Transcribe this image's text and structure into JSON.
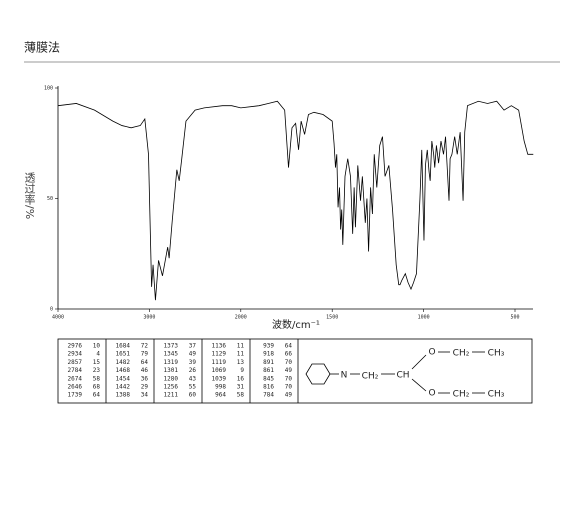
{
  "header": {
    "title": "薄膜法"
  },
  "chart_data": {
    "type": "line",
    "x_label": "波数/cm⁻¹",
    "y_label": "透过率/%",
    "color": "#000000",
    "xlim": [
      4000,
      400
    ],
    "ylim": [
      0,
      100
    ],
    "xticks": [
      4000,
      3000,
      2000,
      1500,
      1000,
      500
    ],
    "yticks": [
      0,
      50,
      100
    ],
    "x": [
      4000,
      3800,
      3600,
      3400,
      3300,
      3200,
      3100,
      3050,
      3010,
      2976,
      2960,
      2934,
      2900,
      2857,
      2800,
      2784,
      2750,
      2700,
      2674,
      2646,
      2600,
      2500,
      2400,
      2200,
      2100,
      2000,
      1900,
      1850,
      1800,
      1760,
      1739,
      1720,
      1700,
      1684,
      1670,
      1651,
      1630,
      1600,
      1550,
      1500,
      1490,
      1482,
      1475,
      1468,
      1460,
      1454,
      1448,
      1442,
      1430,
      1415,
      1400,
      1388,
      1380,
      1373,
      1360,
      1345,
      1335,
      1319,
      1310,
      1301,
      1290,
      1280,
      1270,
      1256,
      1240,
      1225,
      1211,
      1190,
      1170,
      1150,
      1136,
      1129,
      1119,
      1100,
      1085,
      1069,
      1055,
      1039,
      1020,
      1010,
      998,
      990,
      980,
      970,
      964,
      955,
      945,
      939,
      930,
      918,
      905,
      891,
      880,
      861,
      855,
      845,
      830,
      816,
      800,
      784,
      775,
      760,
      700,
      650,
      600,
      560,
      520,
      480,
      450,
      430,
      400
    ],
    "y": [
      92,
      93,
      90,
      85,
      83,
      82,
      83,
      86,
      70,
      10,
      20,
      4,
      22,
      15,
      28,
      23,
      40,
      63,
      58,
      68,
      85,
      90,
      91,
      92,
      92,
      91,
      92,
      93,
      94,
      90,
      64,
      82,
      84,
      72,
      85,
      79,
      88,
      89,
      88,
      85,
      75,
      64,
      70,
      46,
      55,
      36,
      45,
      29,
      60,
      68,
      60,
      34,
      55,
      37,
      65,
      49,
      60,
      39,
      50,
      26,
      55,
      43,
      70,
      55,
      74,
      78,
      60,
      65,
      45,
      20,
      11,
      11,
      13,
      16,
      12,
      9,
      12,
      16,
      50,
      72,
      31,
      65,
      72,
      62,
      58,
      76,
      70,
      64,
      74,
      66,
      76,
      70,
      78,
      49,
      68,
      70,
      78,
      70,
      80,
      49,
      80,
      92,
      94,
      93,
      94,
      90,
      92,
      90,
      76,
      70,
      70
    ]
  },
  "peak_table": {
    "columns": [
      [
        [
          2976,
          10
        ],
        [
          2934,
          4
        ],
        [
          2857,
          15
        ],
        [
          2784,
          23
        ],
        [
          2674,
          58
        ],
        [
          2646,
          68
        ],
        [
          1739,
          64
        ]
      ],
      [
        [
          1684,
          72
        ],
        [
          1651,
          79
        ],
        [
          1482,
          64
        ],
        [
          1468,
          46
        ],
        [
          1454,
          36
        ],
        [
          1442,
          29
        ],
        [
          1388,
          34
        ]
      ],
      [
        [
          1373,
          37
        ],
        [
          1345,
          49
        ],
        [
          1319,
          39
        ],
        [
          1301,
          26
        ],
        [
          1280,
          43
        ],
        [
          1256,
          55
        ],
        [
          1211,
          60
        ]
      ],
      [
        [
          1136,
          11
        ],
        [
          1129,
          11
        ],
        [
          1119,
          13
        ],
        [
          1069,
          9
        ],
        [
          1039,
          16
        ],
        [
          998,
          31
        ],
        [
          964,
          58
        ]
      ],
      [
        [
          939,
          64
        ],
        [
          918,
          66
        ],
        [
          891,
          70
        ],
        [
          861,
          49
        ],
        [
          845,
          70
        ],
        [
          816,
          70
        ],
        [
          784,
          49
        ]
      ]
    ]
  },
  "structure": {
    "labels": [
      "N",
      "CH₂",
      "CH",
      "O",
      "CH₂",
      "CH₃",
      "O",
      "CH₂",
      "CH₃"
    ]
  }
}
